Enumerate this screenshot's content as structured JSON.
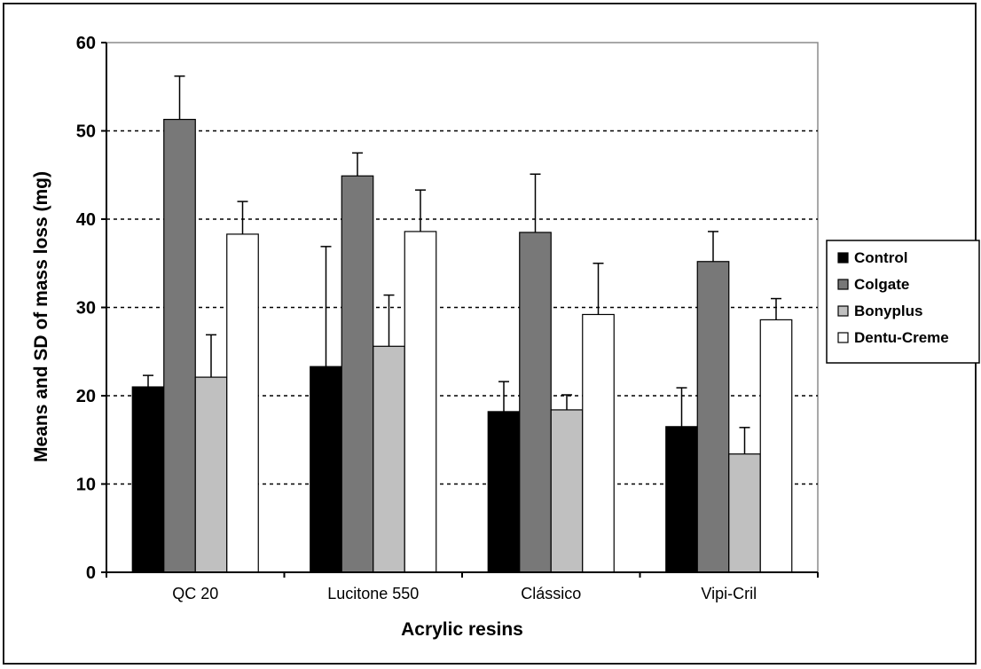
{
  "chart_data": {
    "type": "bar",
    "title": "",
    "xlabel": "Acrylic resins",
    "ylabel": "Means and SD of mass loss (mg)",
    "ylim": [
      0,
      60
    ],
    "yticks": [
      "0",
      "10",
      "20",
      "30",
      "40",
      "50",
      "60"
    ],
    "grid": "horizontal dashed at 10, 20, 30, 40, 50",
    "legend_position": "right",
    "categories": [
      "QC 20",
      "Lucitone 550",
      "Clássico",
      "Vipi-Cril"
    ],
    "series": [
      {
        "name": "Control",
        "color": "#000000",
        "values": [
          21.0,
          23.3,
          18.2,
          16.5
        ],
        "errors": [
          1.3,
          13.6,
          3.4,
          4.4
        ]
      },
      {
        "name": "Colgate",
        "color": "#787878",
        "values": [
          51.3,
          44.9,
          38.5,
          35.2
        ],
        "errors": [
          4.9,
          2.6,
          6.6,
          3.4
        ]
      },
      {
        "name": "Bonyplus",
        "color": "#c0c0c0",
        "values": [
          22.1,
          25.6,
          18.4,
          13.4
        ],
        "errors": [
          4.8,
          5.8,
          1.7,
          3.0
        ]
      },
      {
        "name": "Dentu-Creme",
        "color": "#ffffff",
        "values": [
          38.3,
          38.6,
          29.2,
          28.6
        ],
        "errors": [
          3.7,
          4.7,
          5.8,
          2.4
        ]
      }
    ]
  }
}
